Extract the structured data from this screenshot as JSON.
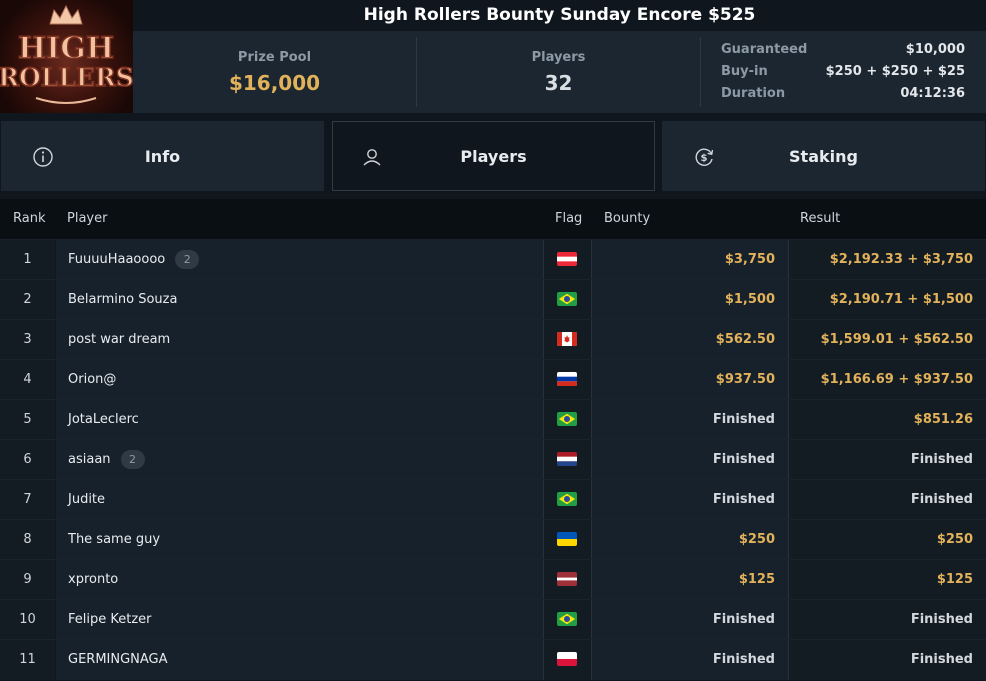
{
  "logo": {
    "line1": "HIGH",
    "line2": "ROLLERS"
  },
  "title": "High Rollers Bounty Sunday Encore $525",
  "stats": {
    "prize_pool_label": "Prize Pool",
    "prize_pool_value": "$16,000",
    "players_label": "Players",
    "players_value": "32",
    "details": [
      {
        "key": "Guaranteed",
        "value": "$10,000"
      },
      {
        "key": "Buy-in",
        "value": "$250 + $250 + $25"
      },
      {
        "key": "Duration",
        "value": "04:12:36"
      }
    ]
  },
  "tabs": [
    {
      "label": "Info",
      "icon": "info-icon"
    },
    {
      "label": "Players",
      "icon": "user-icon",
      "active": true
    },
    {
      "label": "Staking",
      "icon": "dollar-cycle-icon"
    }
  ],
  "table": {
    "headers": {
      "rank": "Rank",
      "player": "Player",
      "flag": "Flag",
      "bounty": "Bounty",
      "result": "Result"
    },
    "rows": [
      {
        "rank": "1",
        "player": "FuuuuHaaoooo",
        "badge": "2",
        "flag": "austria",
        "bounty": "$3,750",
        "bounty_style": "gold",
        "result": "$2,192.33 + $3,750",
        "result_style": "gold"
      },
      {
        "rank": "2",
        "player": "Belarmino Souza",
        "badge": "",
        "flag": "brazil",
        "bounty": "$1,500",
        "bounty_style": "gold",
        "result": "$2,190.71 + $1,500",
        "result_style": "gold"
      },
      {
        "rank": "3",
        "player": "post war dream",
        "badge": "",
        "flag": "canada",
        "bounty": "$562.50",
        "bounty_style": "gold",
        "result": "$1,599.01 + $562.50",
        "result_style": "gold"
      },
      {
        "rank": "4",
        "player": "Orion@",
        "badge": "",
        "flag": "russia",
        "bounty": "$937.50",
        "bounty_style": "gold",
        "result": "$1,166.69 + $937.50",
        "result_style": "gold"
      },
      {
        "rank": "5",
        "player": "JotaLeclerc",
        "badge": "",
        "flag": "brazil",
        "bounty": "Finished",
        "bounty_style": "fin",
        "result": "$851.26",
        "result_style": "gold"
      },
      {
        "rank": "6",
        "player": "asiaan",
        "badge": "2",
        "flag": "netherlands",
        "bounty": "Finished",
        "bounty_style": "fin",
        "result": "Finished",
        "result_style": "fin"
      },
      {
        "rank": "7",
        "player": "Judite",
        "badge": "",
        "flag": "brazil",
        "bounty": "Finished",
        "bounty_style": "fin",
        "result": "Finished",
        "result_style": "fin"
      },
      {
        "rank": "8",
        "player": "The same guy",
        "badge": "",
        "flag": "ukraine",
        "bounty": "$250",
        "bounty_style": "gold",
        "result": "$250",
        "result_style": "gold"
      },
      {
        "rank": "9",
        "player": "xpronto",
        "badge": "",
        "flag": "latvia",
        "bounty": "$125",
        "bounty_style": "gold",
        "result": "$125",
        "result_style": "gold"
      },
      {
        "rank": "10",
        "player": "Felipe Ketzer",
        "badge": "",
        "flag": "brazil",
        "bounty": "Finished",
        "bounty_style": "fin",
        "result": "Finished",
        "result_style": "fin"
      },
      {
        "rank": "11",
        "player": "GERMINGNAGA",
        "badge": "",
        "flag": "poland",
        "bounty": "Finished",
        "bounty_style": "fin",
        "result": "Finished",
        "result_style": "fin"
      }
    ]
  }
}
